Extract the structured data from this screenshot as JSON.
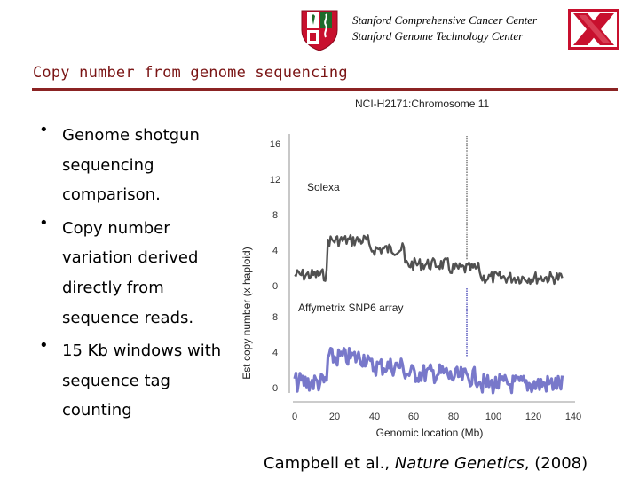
{
  "header": {
    "line1": "Stanford Comprehensive Cancer Center",
    "line2": "Stanford Genome Technology Center"
  },
  "slide": {
    "title": "Copy number from genome sequencing"
  },
  "bullets": [
    {
      "lines": [
        "Genome shotgun",
        "sequencing",
        "comparison."
      ]
    },
    {
      "lines": [
        "Copy number",
        "variation derived",
        "directly from",
        "sequence reads."
      ]
    },
    {
      "lines": [
        "15 Kb windows with",
        "sequence tag",
        "counting"
      ]
    }
  ],
  "figure": {
    "title": "NCI-H2171:Chromosome 11",
    "ylabel": "Est copy number (x haploid)",
    "xlabel": "Genomic location (Mb)",
    "x_ticks": [
      "0",
      "20",
      "40",
      "60",
      "80",
      "100",
      "120",
      "140"
    ],
    "solexa": {
      "label": "Solexa",
      "ticks": [
        "16",
        "12",
        "8",
        "4",
        "0"
      ],
      "color": "#333333"
    },
    "snp6": {
      "label": "Affymetrix SNP6 array",
      "ticks": [
        "8",
        "4",
        "0"
      ],
      "color": "#4b4bb8"
    }
  },
  "citation": {
    "prefix": "Campbell et al., ",
    "journal": "Nature Genetics",
    "suffix": ", (2008)"
  },
  "colors": {
    "title": "#7a1414",
    "rule": "#8b2323",
    "logo_red": "#c8102e"
  },
  "icons": [
    "stanford-shield-icon",
    "sgtc-x-logo-icon"
  ]
}
